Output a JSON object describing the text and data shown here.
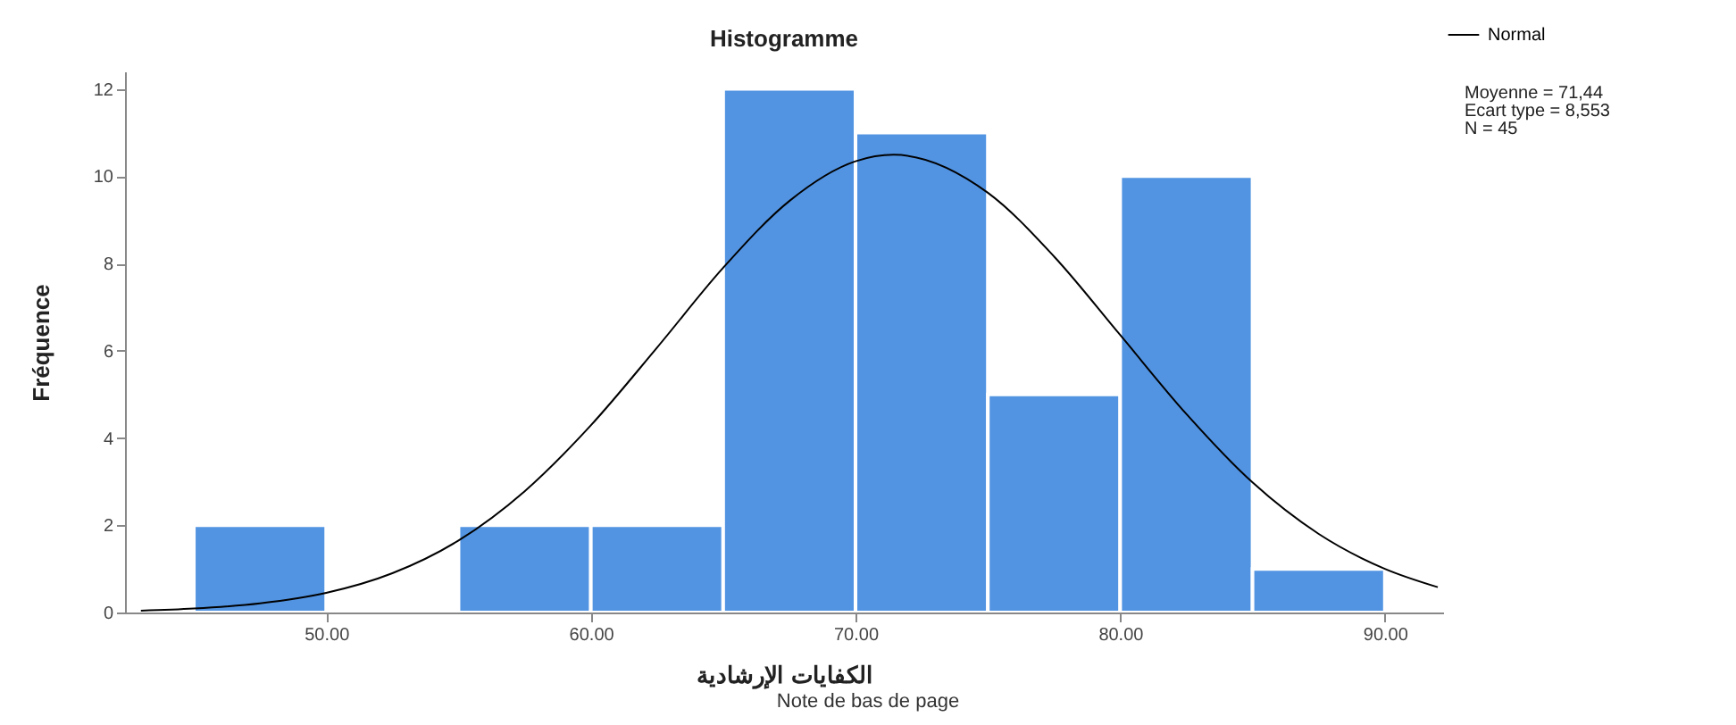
{
  "chart_data": {
    "type": "histogram",
    "title": "Histogramme",
    "xlabel": "الكفايات الإرشادية",
    "ylabel": "Fréquence",
    "bins": [
      45,
      50,
      55,
      60,
      65,
      70,
      75,
      80,
      85,
      90
    ],
    "values": [
      2,
      0,
      2,
      2,
      12,
      11,
      5,
      10,
      1
    ],
    "color": "#5294e2",
    "series": [
      {
        "type": "line",
        "name": "Normal",
        "color": "#000000",
        "x": [
          43,
          45,
          47.5,
          50,
          52.5,
          55,
          57.5,
          60,
          62.5,
          65,
          67.5,
          70,
          71.44,
          75,
          77.5,
          80,
          82.5,
          85,
          87.5,
          90,
          92
        ],
        "values": [
          0.04,
          0.09,
          0.21,
          0.45,
          0.9,
          1.65,
          2.78,
          4.29,
          6.07,
          7.9,
          9.43,
          10.34,
          10.49,
          9.62,
          8.16,
          6.36,
          4.55,
          2.98,
          1.8,
          1.0,
          0.58
        ]
      }
    ],
    "xlim": [
      42.4,
      92.2
    ],
    "xticks": [
      {
        "value": 50,
        "label": "50.00"
      },
      {
        "value": 60,
        "label": "60.00"
      },
      {
        "value": 70,
        "label": "70.00"
      },
      {
        "value": 80,
        "label": "80.00"
      },
      {
        "value": 90,
        "label": "90.00"
      }
    ],
    "ylim": [
      0,
      12.4
    ],
    "yticks": [
      0,
      2,
      4,
      6,
      8,
      10,
      12
    ],
    "grid": false,
    "legend": "top right",
    "marker": "none",
    "line_style": "solid",
    "annotations": [
      "Moyenne = 71,44",
      "Ecart type = 8,553",
      "N = 45",
      "Note de bas de page"
    ]
  }
}
